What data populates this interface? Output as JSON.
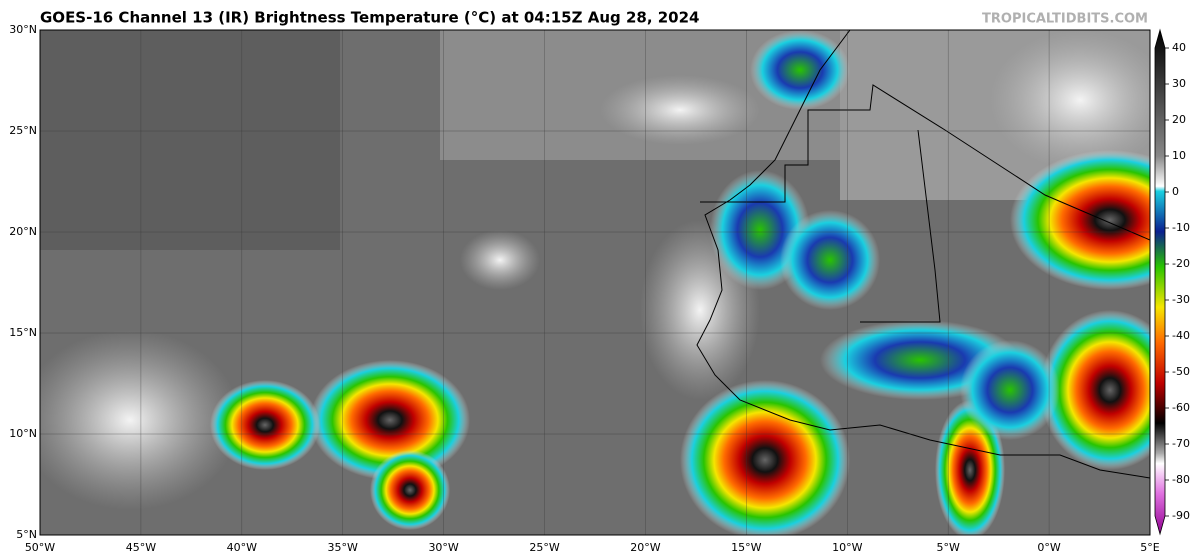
{
  "title": "GOES-16 Channel 13 (IR) Brightness Temperature (°C) at 04:15Z Aug 28, 2024",
  "credit": "TROPICALTIDBITS.COM",
  "lat_labels": [
    "30°N",
    "25°N",
    "20°N",
    "15°N",
    "10°N",
    "5°N"
  ],
  "lon_labels": [
    "50°W",
    "45°W",
    "40°W",
    "35°W",
    "30°W",
    "25°W",
    "20°W",
    "15°W",
    "10°W",
    "5°W",
    "0°W",
    "5°E"
  ],
  "colorbar_ticks": [
    "40",
    "30",
    "20",
    "10",
    "0",
    "-10",
    "-20",
    "-30",
    "-40",
    "-50",
    "-60",
    "-70",
    "-80",
    "-90"
  ]
}
